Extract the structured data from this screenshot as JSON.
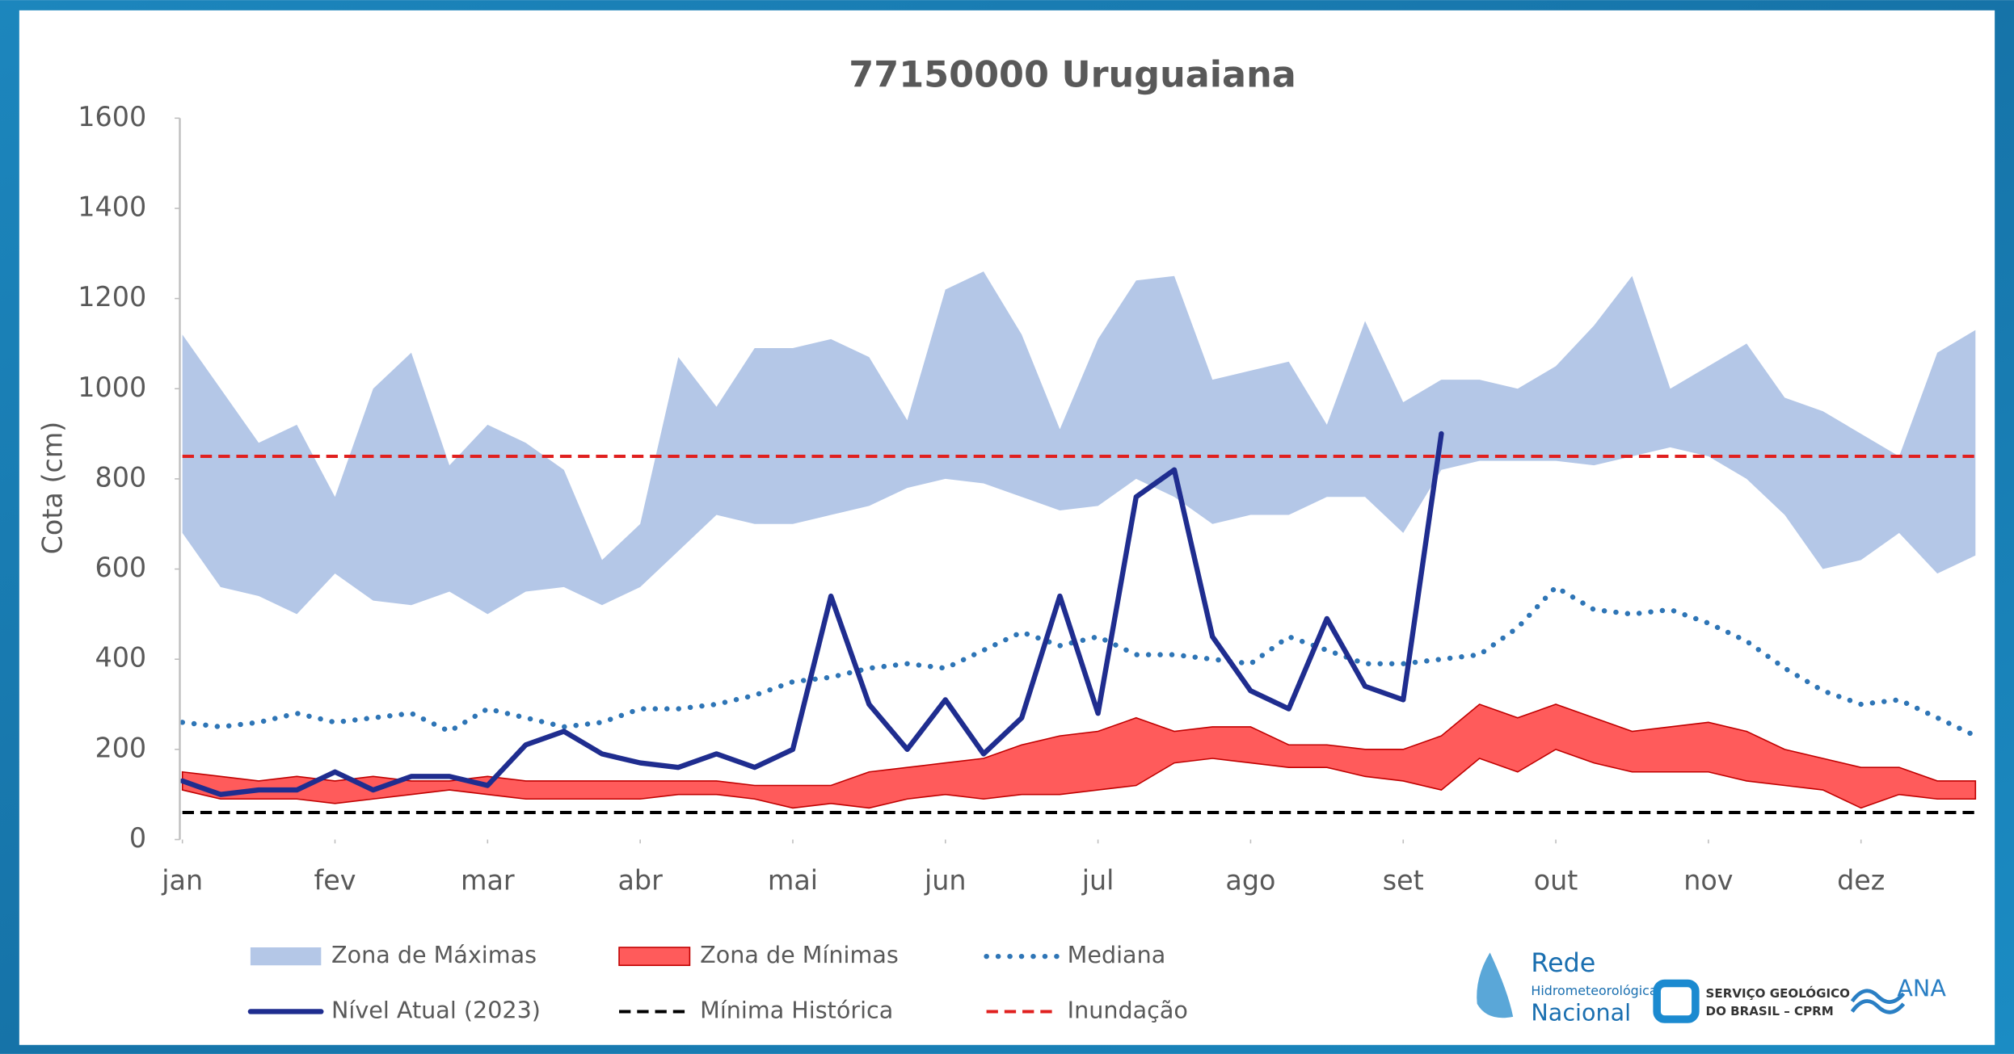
{
  "chart_data": {
    "type": "line",
    "title": "77150000 Uruguaiana",
    "y_label": "Cota (cm)",
    "x": [
      0,
      0.25,
      0.5,
      0.75,
      1,
      1.25,
      1.5,
      1.75,
      2,
      2.25,
      2.5,
      2.75,
      3,
      3.25,
      3.5,
      3.75,
      4,
      4.25,
      4.5,
      4.75,
      5,
      5.25,
      5.5,
      5.75,
      6,
      6.25,
      6.5,
      6.75,
      7,
      7.25,
      7.5,
      7.75,
      8,
      8.25,
      8.5,
      8.75,
      9,
      9.25,
      9.5,
      9.75,
      10,
      10.25,
      10.5,
      10.75,
      11,
      11.25,
      11.5,
      11.75
    ],
    "xlim": [
      0,
      11.75
    ],
    "xticks": [
      {
        "value": 0,
        "label": "jan"
      },
      {
        "value": 1,
        "label": "fev"
      },
      {
        "value": 2,
        "label": "mar"
      },
      {
        "value": 3,
        "label": "abr"
      },
      {
        "value": 4,
        "label": "mai"
      },
      {
        "value": 5,
        "label": "jun"
      },
      {
        "value": 6,
        "label": "jul"
      },
      {
        "value": 7,
        "label": "ago"
      },
      {
        "value": 8,
        "label": "set"
      },
      {
        "value": 9,
        "label": "out"
      },
      {
        "value": 10,
        "label": "nov"
      },
      {
        "value": 11,
        "label": "dez"
      }
    ],
    "ylim": [
      0,
      1600
    ],
    "yticks": [
      0,
      200,
      400,
      600,
      800,
      1000,
      1200,
      1400,
      1600
    ],
    "grid": false,
    "series": [
      {
        "name": "Zona de Máximas",
        "type": "range",
        "color": "#b4c7e7",
        "upper": [
          1120,
          1000,
          880,
          920,
          760,
          1000,
          1080,
          830,
          920,
          880,
          820,
          620,
          700,
          1070,
          960,
          1090,
          1090,
          1110,
          1070,
          930,
          1220,
          1260,
          1120,
          910,
          1110,
          1240,
          1250,
          1020,
          1040,
          1060,
          920,
          1150,
          970,
          1020,
          1020,
          1000,
          1050,
          1140,
          1250,
          1000,
          1050,
          1100,
          980,
          950,
          900,
          850,
          1080,
          1130
        ],
        "lower": [
          680,
          560,
          540,
          500,
          590,
          530,
          520,
          550,
          500,
          550,
          560,
          520,
          560,
          640,
          720,
          700,
          700,
          720,
          740,
          780,
          800,
          790,
          760,
          730,
          740,
          800,
          760,
          700,
          720,
          720,
          760,
          760,
          680,
          820,
          840,
          840,
          840,
          830,
          850,
          870,
          850,
          800,
          720,
          600,
          620,
          680,
          590,
          630
        ]
      },
      {
        "name": "Zona de Mínimas",
        "type": "range",
        "color": "#ff5b5b",
        "upper": [
          150,
          140,
          130,
          140,
          130,
          140,
          130,
          130,
          140,
          130,
          130,
          130,
          130,
          130,
          130,
          120,
          120,
          120,
          150,
          160,
          170,
          180,
          210,
          230,
          240,
          270,
          240,
          250,
          250,
          210,
          210,
          200,
          200,
          230,
          300,
          270,
          300,
          270,
          240,
          250,
          260,
          240,
          200,
          180,
          160,
          160,
          130,
          130
        ],
        "lower": [
          110,
          90,
          90,
          90,
          80,
          90,
          100,
          110,
          100,
          90,
          90,
          90,
          90,
          100,
          100,
          90,
          70,
          80,
          70,
          90,
          100,
          90,
          100,
          100,
          110,
          120,
          170,
          180,
          170,
          160,
          160,
          140,
          130,
          110,
          180,
          150,
          200,
          170,
          150,
          150,
          150,
          130,
          120,
          110,
          70,
          100,
          90,
          90
        ]
      },
      {
        "name": "Mediana",
        "type": "line",
        "style": "dotted",
        "color": "#2e75b6",
        "values": [
          260,
          250,
          260,
          280,
          260,
          270,
          280,
          240,
          290,
          270,
          250,
          260,
          290,
          290,
          300,
          320,
          350,
          360,
          380,
          390,
          380,
          420,
          460,
          430,
          450,
          410,
          410,
          400,
          390,
          450,
          420,
          390,
          390,
          400,
          410,
          470,
          560,
          510,
          500,
          510,
          480,
          440,
          380,
          330,
          300,
          310,
          270,
          230
        ]
      },
      {
        "name": "Nível Atual (2023)",
        "type": "line",
        "style": "solid",
        "color": "#1f2d8f",
        "values": [
          130,
          100,
          110,
          110,
          150,
          110,
          140,
          140,
          120,
          210,
          240,
          190,
          170,
          160,
          190,
          160,
          200,
          540,
          300,
          200,
          310,
          190,
          270,
          540,
          280,
          760,
          820,
          450,
          330,
          290,
          490,
          340,
          310,
          900,
          null,
          null,
          null,
          null,
          null,
          null,
          null,
          null,
          null,
          null,
          null,
          null,
          null,
          null
        ]
      },
      {
        "name": "Mínima Histórica",
        "type": "hline",
        "style": "dashed",
        "color": "#000000",
        "value": 60
      },
      {
        "name": "Inundação",
        "type": "hline",
        "style": "dashed",
        "color": "#e0201f",
        "value": 850
      }
    ],
    "logos": [
      "Rede",
      "Hidrometeorológica",
      "Nacional",
      "SERVIÇO GEOLÓGICO",
      "DO BRASIL – CPRM",
      "ANA"
    ]
  }
}
